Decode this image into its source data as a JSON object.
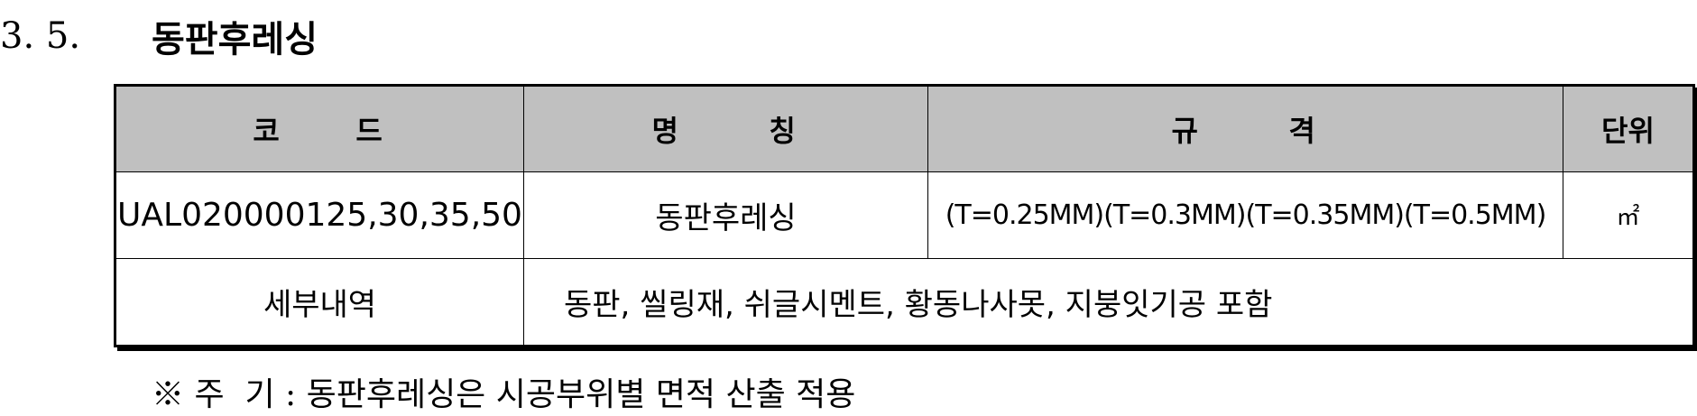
{
  "section": {
    "number": "3. 5.",
    "title": "동판후레싱"
  },
  "table": {
    "headers": {
      "code": "코     드",
      "name": "명      칭",
      "spec": "규      격",
      "unit": "단위"
    },
    "row": {
      "code": "UAL020000125,30,35,50",
      "name": "동판후레싱",
      "spec": "(T=0.25MM)(T=0.3MM)(T=0.35MM)(T=0.5MM)",
      "unit": "㎡"
    },
    "details": {
      "label": "세부내역",
      "value": "동판, 씰링재, 쉬글시멘트, 황동나사못, 지붕잇기공 포함"
    }
  },
  "note": "※ 주  기 : 동판후레싱은 시공부위별 면적 산출 적용"
}
